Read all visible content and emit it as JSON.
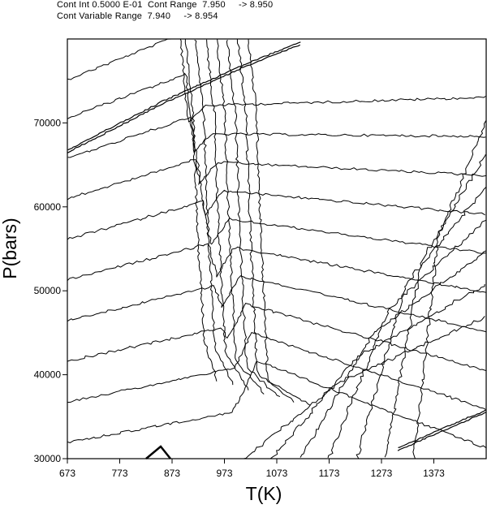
{
  "header": {
    "line1": "Cont Int 0.5000 E-01  Cont Range  7.950     -> 8.950",
    "line2": "Cont Variable Range  7.940     -> 8.954"
  },
  "chart_data": {
    "type": "contour",
    "xlabel": "T(K)",
    "ylabel": "P(bars)",
    "xlim": [
      673,
      1473
    ],
    "ylim": [
      30000,
      80000
    ],
    "x_ticks": [
      "673",
      "773",
      "873",
      "973",
      "1073",
      "1173",
      "1273",
      "1373"
    ],
    "y_ticks": [
      "30000",
      "40000",
      "50000",
      "60000",
      "70000"
    ],
    "contour_interval": 0.05,
    "contour_range": [
      7.95,
      8.95
    ],
    "variable_range": [
      7.94,
      8.954
    ],
    "grid": false,
    "legend": "none"
  }
}
